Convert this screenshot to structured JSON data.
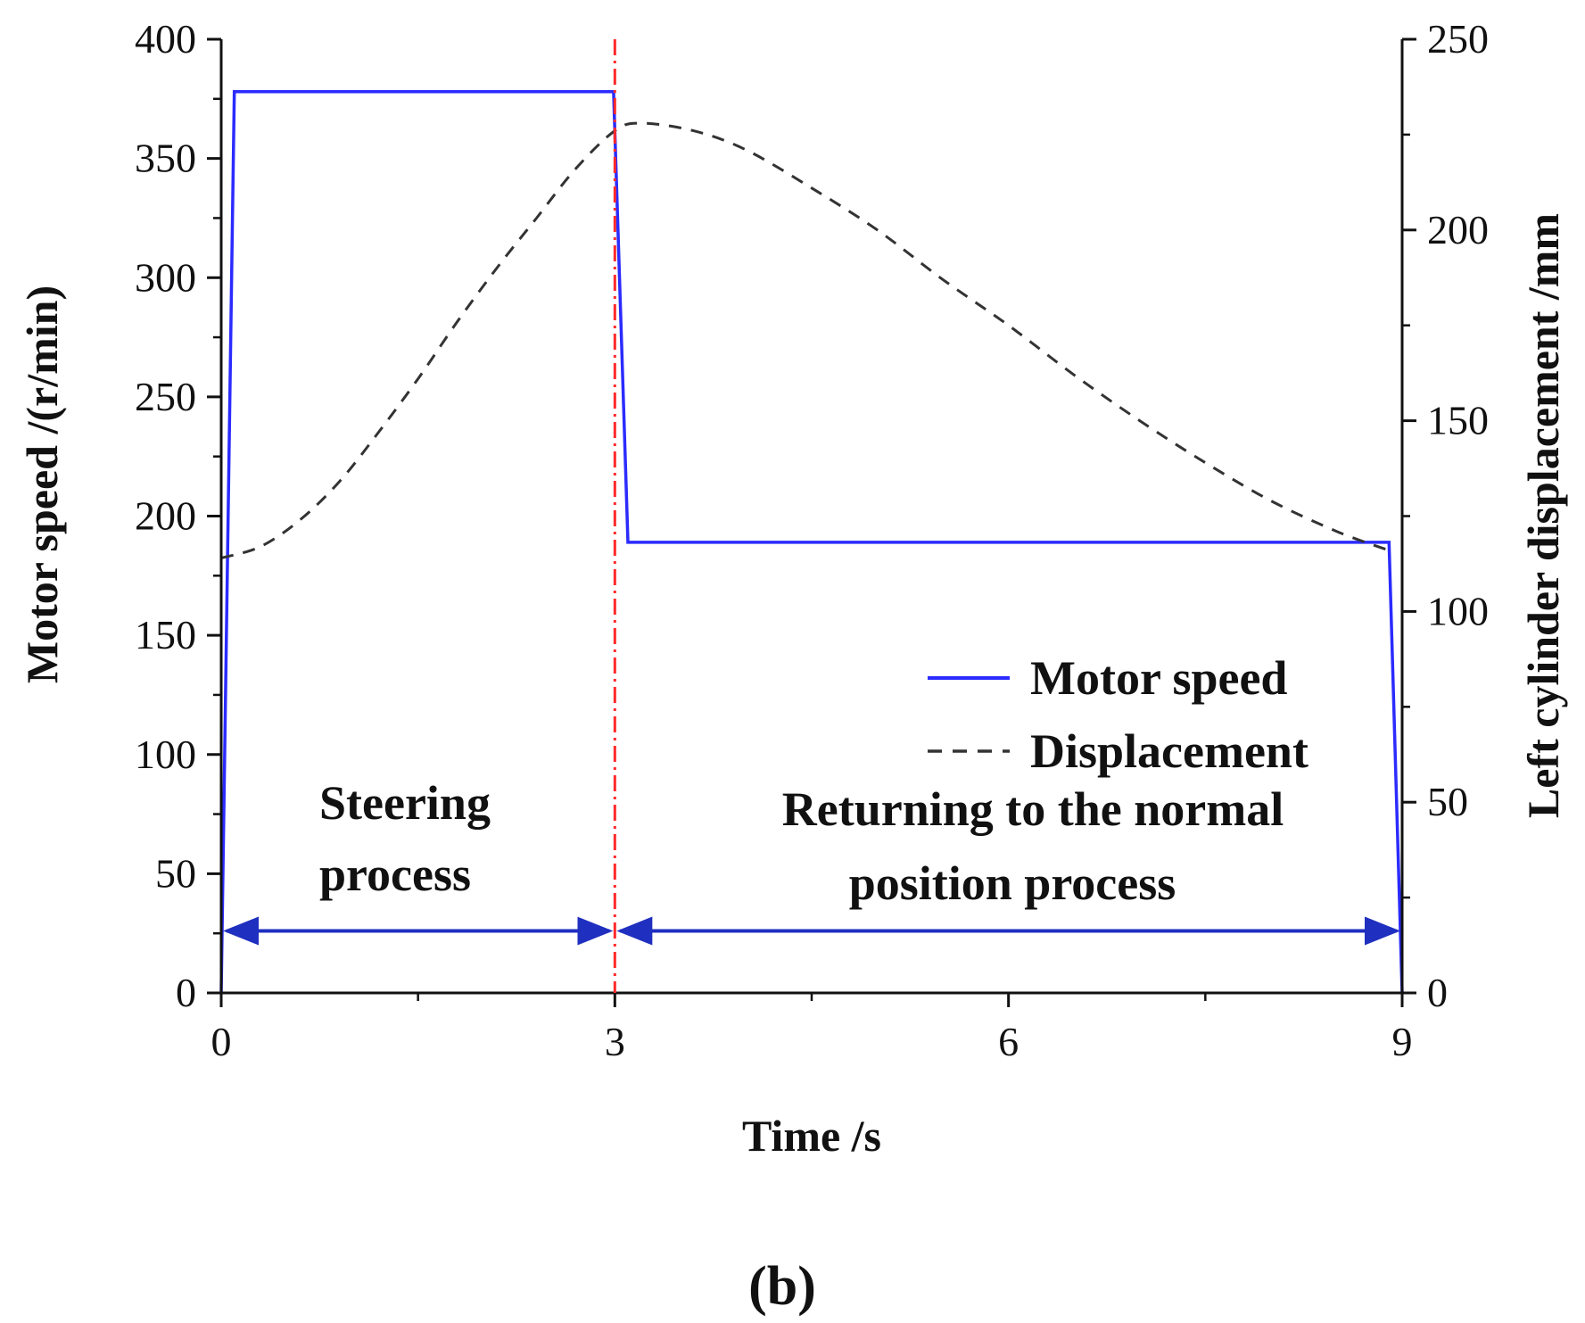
{
  "chart_data": {
    "type": "line",
    "panel_label": "(b)",
    "xlabel": "Time  /s",
    "ylabel_left": "Motor speed  /(r/min)",
    "ylabel_right": "Left cylinder displacement  /mm",
    "xlim": [
      0,
      9
    ],
    "ylim_left": [
      0,
      400
    ],
    "ylim_right": [
      0,
      250
    ],
    "x_ticks": [
      0,
      3,
      6,
      9
    ],
    "x_minor_ticks": [
      1.5,
      4.5,
      7.5
    ],
    "y_left_ticks": [
      0,
      50,
      100,
      150,
      200,
      250,
      300,
      350,
      400
    ],
    "y_right_ticks": [
      0,
      50,
      100,
      150,
      200,
      250
    ],
    "grid": false,
    "legend_position": "center-right",
    "colors": {
      "motor_speed": "#2b2bff",
      "displacement": "#333333",
      "divider": "#ff2a2a",
      "arrows": "#1f2fbf"
    },
    "series": [
      {
        "name": "Motor speed",
        "axis": "left",
        "style": "solid",
        "x": [
          0,
          0.1,
          2.99,
          3.1,
          8.9,
          9.0
        ],
        "y": [
          0,
          378,
          378,
          189,
          189,
          0
        ]
      },
      {
        "name": "Displacement",
        "axis": "right",
        "style": "dashed",
        "x": [
          0.0,
          0.3,
          0.6,
          0.9,
          1.2,
          1.5,
          1.8,
          2.1,
          2.4,
          2.7,
          3.0,
          3.2,
          3.6,
          4.0,
          4.5,
          5.0,
          5.5,
          6.0,
          6.5,
          7.0,
          7.5,
          8.0,
          8.5,
          8.9
        ],
        "y": [
          114,
          117,
          124,
          134,
          147,
          161,
          176,
          190,
          203,
          216,
          226,
          228,
          226,
          221,
          211,
          200,
          187,
          175,
          162,
          150,
          139,
          129,
          121,
          116
        ]
      }
    ],
    "annotations": {
      "divider_x": 3,
      "arrow_y": 26,
      "steering": {
        "line1": "Steering",
        "line2": "process",
        "x_range": [
          0,
          3
        ]
      },
      "returning": {
        "line1": "Returning to the normal",
        "line2": "position process",
        "x_range": [
          3,
          9
        ]
      }
    }
  }
}
